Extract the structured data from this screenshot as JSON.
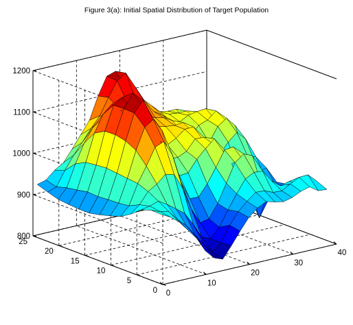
{
  "chart_data": {
    "type": "surface",
    "title": "Figure 3(a): Initial Spatial Distribution of Target Population",
    "xlabel": "",
    "ylabel": "",
    "zlabel": "",
    "xlim": [
      0,
      40
    ],
    "ylim": [
      0,
      25
    ],
    "zlim": [
      800,
      1200
    ],
    "x_ticks": [
      0,
      10,
      20,
      30,
      40
    ],
    "y_ticks": [
      0,
      5,
      10,
      15,
      20,
      25
    ],
    "z_ticks": [
      800,
      900,
      1000,
      1100,
      1200
    ],
    "grid": "on",
    "colormap": "jet",
    "grid_x": [
      1,
      3,
      5,
      7,
      9,
      11,
      13,
      15,
      17,
      19,
      21,
      23,
      25,
      27,
      29,
      31,
      33,
      35,
      37,
      39
    ],
    "grid_y": [
      1,
      3,
      5,
      7,
      9,
      11,
      13,
      15,
      17,
      19,
      21,
      23,
      25
    ],
    "z_rows": [
      [
        962,
        951,
        934,
        910,
        885,
        850,
        828,
        820,
        848,
        878,
        906,
        924,
        935,
        929,
        925,
        930,
        940,
        946,
        932,
        930
      ],
      [
        963,
        955,
        950,
        926,
        907,
        880,
        852,
        828,
        846,
        883,
        911,
        931,
        948,
        947,
        938,
        937,
        949,
        960,
        961,
        941
      ],
      [
        955,
        959,
        966,
        953,
        938,
        922,
        890,
        854,
        846,
        869,
        906,
        940,
        971,
        982,
        980,
        952,
        935,
        940,
        934,
        917
      ],
      [
        935,
        953,
        980,
        993,
        1012,
        1006,
        967,
        912,
        875,
        880,
        912,
        956,
        1001,
        1017,
        1008,
        935,
        898,
        913,
        919,
        890
      ],
      [
        920,
        941,
        990,
        1027,
        1068,
        1077,
        1039,
        968,
        924,
        923,
        950,
        985,
        1022,
        1025,
        991,
        909,
        838,
        897,
        915,
        886
      ],
      [
        912,
        938,
        993,
        1056,
        1107,
        1121,
        1089,
        1016,
        970,
        972,
        1000,
        1021,
        1040,
        1005,
        970,
        916,
        886,
        935,
        940,
        895
      ],
      [
        905,
        937,
        996,
        1069,
        1132,
        1158,
        1115,
        1049,
        1002,
        1000,
        1010,
        1035,
        1034,
        1014,
        978,
        944,
        930,
        966,
        957,
        905
      ],
      [
        900,
        935,
        999,
        1075,
        1133,
        1166,
        1136,
        1087,
        1037,
        1021,
        1032,
        1049,
        1050,
        1016,
        987,
        967,
        993,
        1012,
        991,
        932
      ],
      [
        900,
        937,
        997,
        1074,
        1132,
        1146,
        1115,
        1088,
        1060,
        1055,
        1051,
        1049,
        1051,
        1026,
        992,
        988,
        1022,
        1037,
        1014,
        944
      ],
      [
        902,
        932,
        994,
        1060,
        1101,
        1120,
        1100,
        1079,
        1068,
        1070,
        1063,
        1058,
        1046,
        1013,
        999,
        1020,
        1028,
        1045,
        1020,
        962
      ],
      [
        905,
        928,
        981,
        1026,
        1059,
        1073,
        1076,
        1090,
        1099,
        1100,
        1093,
        1064,
        1050,
        1030,
        1024,
        1035,
        1039,
        1041,
        1012,
        966
      ],
      [
        913,
        921,
        956,
        988,
        1014,
        1043,
        1068,
        1108,
        1143,
        1157,
        1121,
        1083,
        1063,
        1043,
        1033,
        1031,
        1031,
        1006,
        989,
        959
      ],
      [
        922,
        928,
        947,
        960,
        988,
        1018,
        1048,
        1102,
        1145,
        1152,
        1117,
        1062,
        1054,
        1049,
        1030,
        1026,
        1026,
        994,
        976,
        952
      ]
    ]
  }
}
